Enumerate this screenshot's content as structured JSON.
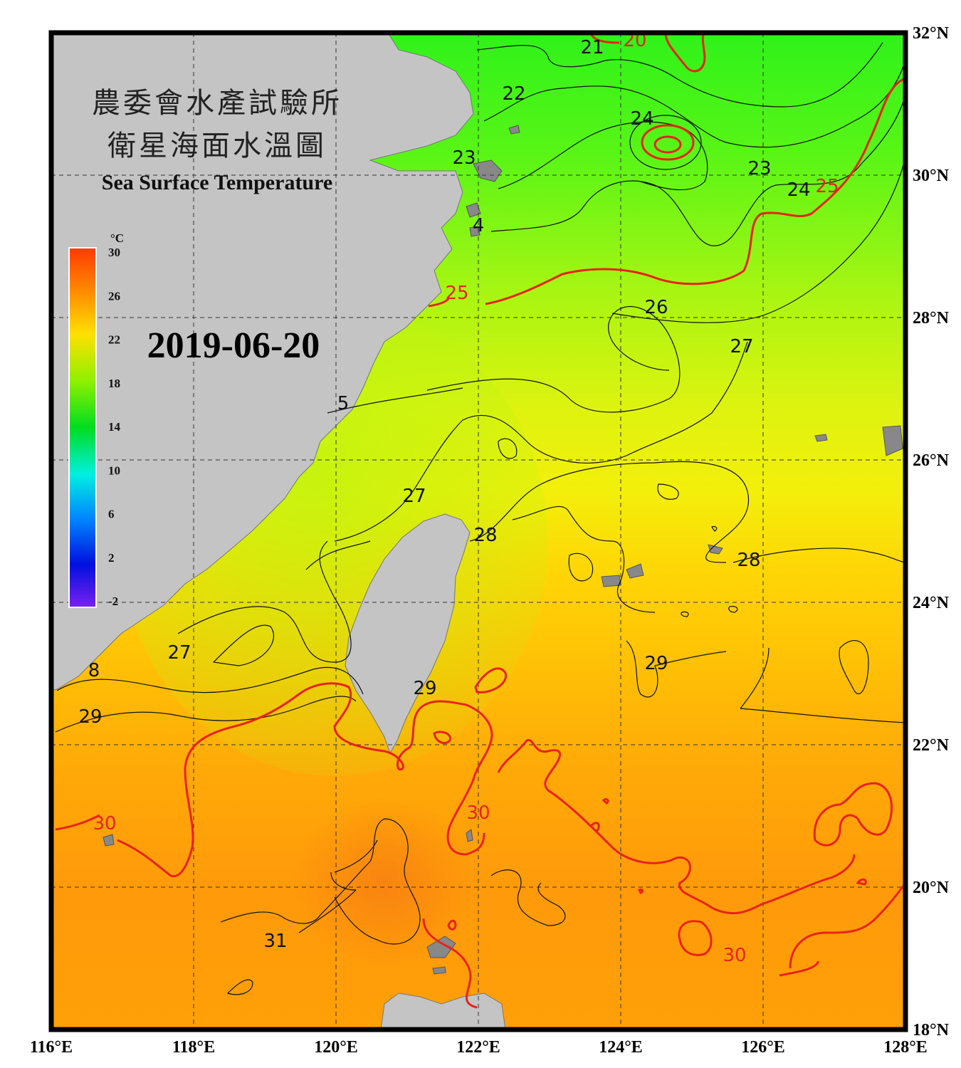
{
  "title": {
    "line1": "農委會水產試驗所",
    "line2": "衛星海面水溫圖",
    "english": "Sea Surface Temperature"
  },
  "date": "2019-06-20",
  "colorbar": {
    "unit": "°C",
    "ticks": [
      "30",
      "26",
      "22",
      "18",
      "14",
      "10",
      "6",
      "2",
      "-2"
    ]
  },
  "axes": {
    "lon_labels": [
      "116°E",
      "118°E",
      "120°E",
      "122°E",
      "124°E",
      "126°E",
      "128°E"
    ],
    "lat_labels": [
      "32°N",
      "30°N",
      "28°N",
      "26°N",
      "24°N",
      "22°N",
      "20°N",
      "18°N"
    ]
  },
  "isotherm_labels": {
    "black": [
      {
        "text": "21",
        "lon": 123.6,
        "lat": 31.8
      },
      {
        "text": "22",
        "lon": 122.5,
        "lat": 31.15
      },
      {
        "text": "24",
        "lon": 124.3,
        "lat": 30.8
      },
      {
        "text": "23",
        "lon": 125.95,
        "lat": 30.1
      },
      {
        "text": "23",
        "lon": 121.8,
        "lat": 30.25
      },
      {
        "text": "24",
        "lon": 126.5,
        "lat": 29.8
      },
      {
        "text": "4",
        "lon": 122.0,
        "lat": 29.3
      },
      {
        "text": "26",
        "lon": 124.5,
        "lat": 28.15
      },
      {
        "text": "27",
        "lon": 125.7,
        "lat": 27.6
      },
      {
        "text": "5",
        "lon": 120.1,
        "lat": 26.8
      },
      {
        "text": "27",
        "lon": 121.1,
        "lat": 25.5
      },
      {
        "text": "28",
        "lon": 122.1,
        "lat": 24.95
      },
      {
        "text": "28",
        "lon": 125.8,
        "lat": 24.6
      },
      {
        "text": "29",
        "lon": 124.5,
        "lat": 23.15
      },
      {
        "text": "27",
        "lon": 117.8,
        "lat": 23.3
      },
      {
        "text": "8",
        "lon": 116.6,
        "lat": 23.05
      },
      {
        "text": "29",
        "lon": 116.55,
        "lat": 22.4
      },
      {
        "text": "29",
        "lon": 121.25,
        "lat": 22.8
      },
      {
        "text": "31",
        "lon": 119.15,
        "lat": 19.25
      }
    ],
    "red": [
      {
        "text": "20",
        "lon": 124.2,
        "lat": 31.9
      },
      {
        "text": "25",
        "lon": 126.9,
        "lat": 29.85
      },
      {
        "text": "25",
        "lon": 121.7,
        "lat": 28.35
      },
      {
        "text": "30",
        "lon": 116.75,
        "lat": 20.9
      },
      {
        "text": "30",
        "lon": 122.0,
        "lat": 21.05
      },
      {
        "text": "30",
        "lon": 125.6,
        "lat": 19.05
      }
    ]
  }
}
